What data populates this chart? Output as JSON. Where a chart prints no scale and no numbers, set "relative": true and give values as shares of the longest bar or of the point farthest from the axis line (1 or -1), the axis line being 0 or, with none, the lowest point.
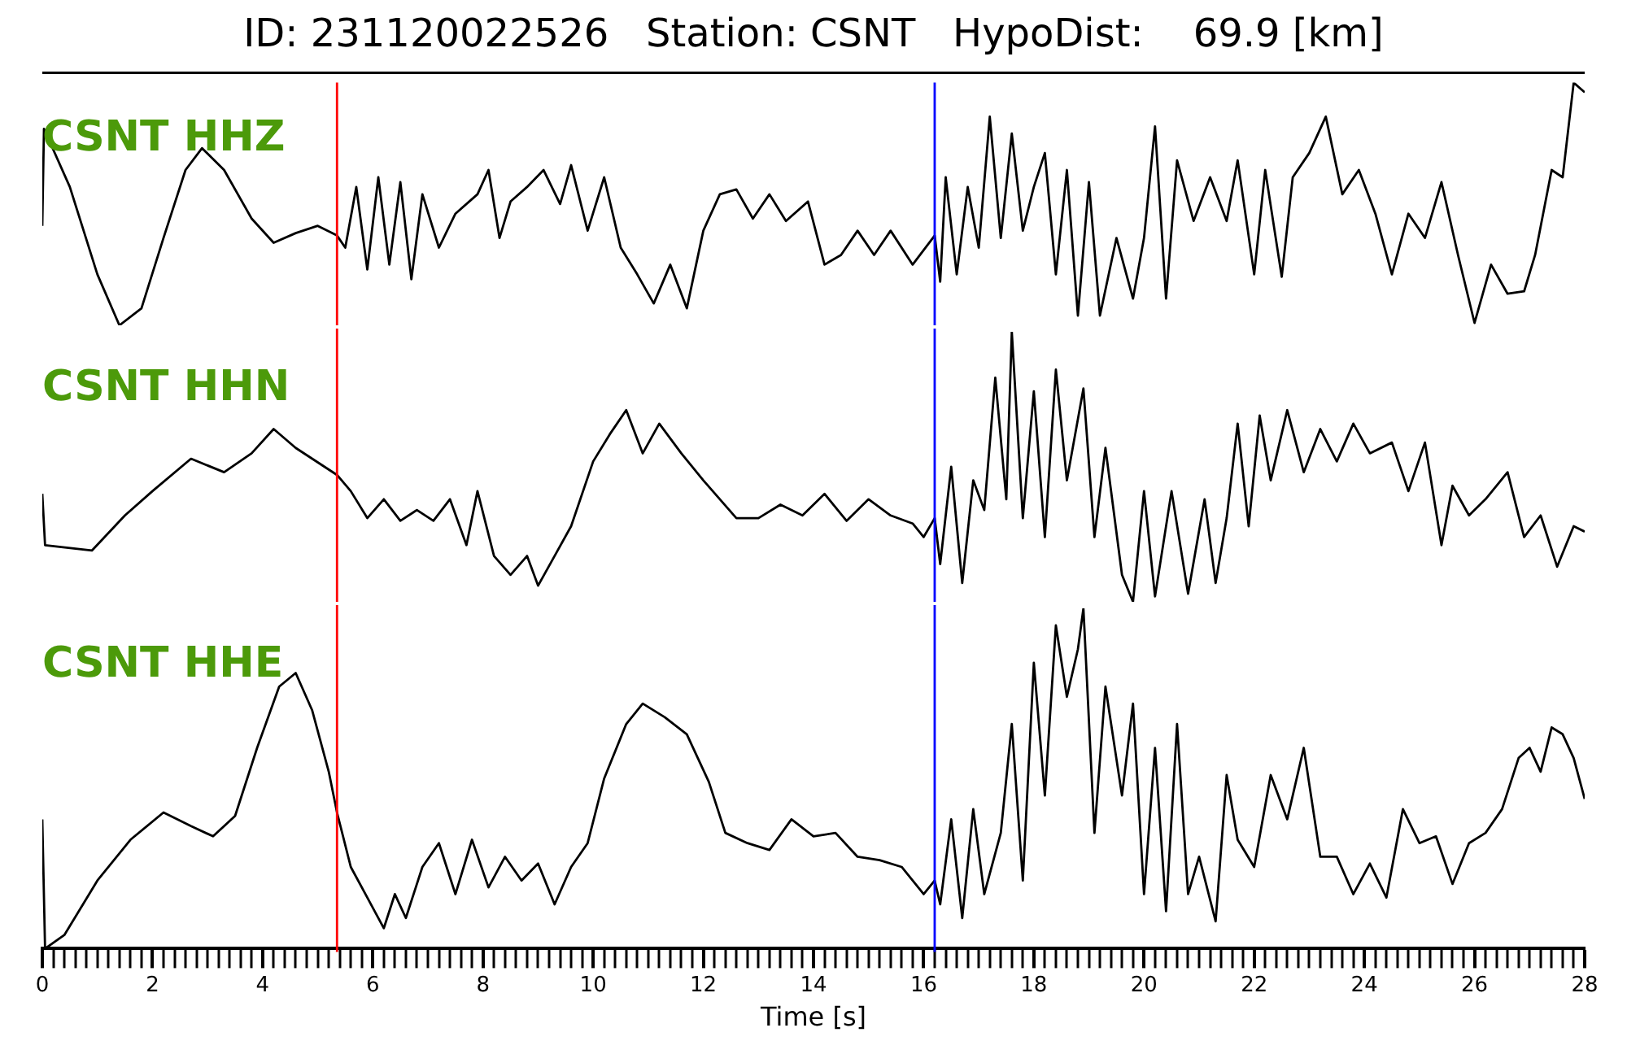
{
  "chart_data": [
    {
      "type": "line",
      "title": "ID: 231120022526   Station: CSNT   HypoDist:    69.9 [km]",
      "annotations": [
        "CSNT HHZ"
      ],
      "relative": true,
      "xlim": [
        0,
        28
      ],
      "tick_labels": false,
      "grid": false,
      "legend": false,
      "ref_lines": [
        {
          "axis": "x",
          "value": 5.35,
          "color": "#ff0000"
        },
        {
          "axis": "x",
          "value": 16.2,
          "color": "#0000ff"
        }
      ],
      "x": [
        0,
        0.03,
        0.5,
        1.0,
        1.4,
        1.8,
        2.2,
        2.6,
        2.9,
        3.3,
        3.8,
        4.2,
        4.6,
        5.0,
        5.35,
        5.5,
        5.7,
        5.9,
        6.1,
        6.3,
        6.5,
        6.7,
        6.9,
        7.2,
        7.5,
        7.9,
        8.1,
        8.3,
        8.5,
        8.8,
        9.1,
        9.4,
        9.6,
        9.9,
        10.2,
        10.5,
        10.8,
        11.1,
        11.4,
        11.7,
        12.0,
        12.3,
        12.6,
        12.9,
        13.2,
        13.5,
        13.9,
        14.2,
        14.5,
        14.8,
        15.1,
        15.4,
        15.8,
        16.2,
        16.3,
        16.4,
        16.6,
        16.8,
        17.0,
        17.2,
        17.4,
        17.6,
        17.8,
        18.0,
        18.2,
        18.4,
        18.6,
        18.8,
        19.0,
        19.2,
        19.5,
        19.8,
        20.0,
        20.2,
        20.4,
        20.6,
        20.9,
        21.2,
        21.5,
        21.7,
        22.0,
        22.2,
        22.5,
        22.7,
        23.0,
        23.3,
        23.6,
        23.9,
        24.2,
        24.5,
        24.8,
        25.1,
        25.4,
        25.7,
        26.0,
        26.3,
        26.6,
        26.9,
        27.1,
        27.4,
        27.6,
        27.8,
        28.0
      ],
      "series": [
        {
          "color": "#000000",
          "values": [
            0.41,
            0.81,
            0.57,
            0.21,
            0,
            0.07,
            0.36,
            0.64,
            0.73,
            0.64,
            0.44,
            0.34,
            0.38,
            0.41,
            0.37,
            0.32,
            0.57,
            0.23,
            0.61,
            0.25,
            0.59,
            0.19,
            0.54,
            0.32,
            0.46,
            0.54,
            0.64,
            0.36,
            0.51,
            0.57,
            0.64,
            0.5,
            0.66,
            0.39,
            0.61,
            0.32,
            0.21,
            0.09,
            0.25,
            0.07,
            0.39,
            0.54,
            0.56,
            0.44,
            0.54,
            0.43,
            0.51,
            0.25,
            0.29,
            0.39,
            0.29,
            0.39,
            0.25,
            0.37,
            0.18,
            0.61,
            0.21,
            0.57,
            0.32,
            0.86,
            0.36,
            0.79,
            0.39,
            0.57,
            0.71,
            0.21,
            0.64,
            0.04,
            0.59,
            0.04,
            0.36,
            0.11,
            0.36,
            0.82,
            0.11,
            0.68,
            0.43,
            0.61,
            0.43,
            0.68,
            0.21,
            0.64,
            0.2,
            0.61,
            0.71,
            0.86,
            0.54,
            0.64,
            0.46,
            0.21,
            0.46,
            0.36,
            0.59,
            0.29,
            0.01,
            0.25,
            0.13,
            0.14,
            0.29,
            0.64,
            0.61,
            1,
            0.96
          ]
        }
      ]
    },
    {
      "type": "line",
      "annotations": [
        "CSNT HHN"
      ],
      "relative": true,
      "xlim": [
        0,
        28
      ],
      "tick_labels": false,
      "grid": false,
      "legend": false,
      "ref_lines": [
        {
          "axis": "x",
          "value": 5.35,
          "color": "#ff0000"
        },
        {
          "axis": "x",
          "value": 16.2,
          "color": "#0000ff"
        }
      ],
      "x": [
        0,
        0.05,
        0.9,
        1.5,
        2.0,
        2.7,
        3.3,
        3.8,
        4.2,
        4.6,
        5.35,
        5.6,
        5.9,
        6.2,
        6.5,
        6.8,
        7.1,
        7.4,
        7.7,
        7.9,
        8.2,
        8.5,
        8.8,
        9.0,
        9.3,
        9.6,
        10.0,
        10.3,
        10.6,
        10.9,
        11.2,
        11.6,
        12.0,
        12.3,
        12.6,
        13.0,
        13.4,
        13.8,
        14.2,
        14.6,
        15.0,
        15.4,
        15.8,
        16.0,
        16.2,
        16.3,
        16.5,
        16.7,
        16.9,
        17.1,
        17.3,
        17.5,
        17.6,
        17.8,
        18.0,
        18.2,
        18.4,
        18.6,
        18.9,
        19.1,
        19.3,
        19.6,
        19.8,
        20.0,
        20.2,
        20.5,
        20.8,
        21.1,
        21.3,
        21.5,
        21.7,
        21.9,
        22.1,
        22.3,
        22.6,
        22.9,
        23.2,
        23.5,
        23.8,
        24.1,
        24.5,
        24.8,
        25.1,
        25.4,
        25.6,
        25.9,
        26.2,
        26.6,
        26.9,
        27.2,
        27.5,
        27.8,
        28.0
      ],
      "series": [
        {
          "color": "#000000",
          "values": [
            0.4,
            0.21,
            0.19,
            0.32,
            0.41,
            0.53,
            0.48,
            0.55,
            0.64,
            0.57,
            0.47,
            0.41,
            0.31,
            0.38,
            0.3,
            0.34,
            0.3,
            0.38,
            0.21,
            0.41,
            0.17,
            0.1,
            0.17,
            0.06,
            0.17,
            0.28,
            0.52,
            0.62,
            0.71,
            0.55,
            0.66,
            0.55,
            0.45,
            0.38,
            0.31,
            0.31,
            0.36,
            0.32,
            0.4,
            0.3,
            0.38,
            0.32,
            0.29,
            0.24,
            0.31,
            0.14,
            0.5,
            0.07,
            0.45,
            0.34,
            0.83,
            0.38,
            1,
            0.31,
            0.78,
            0.24,
            0.86,
            0.45,
            0.79,
            0.24,
            0.57,
            0.1,
            0,
            0.41,
            0.02,
            0.41,
            0.03,
            0.38,
            0.07,
            0.31,
            0.66,
            0.28,
            0.69,
            0.45,
            0.71,
            0.48,
            0.64,
            0.52,
            0.66,
            0.55,
            0.59,
            0.41,
            0.59,
            0.21,
            0.43,
            0.32,
            0.38,
            0.48,
            0.24,
            0.32,
            0.13,
            0.28,
            0.26
          ]
        }
      ]
    },
    {
      "type": "line",
      "annotations": [
        "CSNT HHE"
      ],
      "xlabel": "Time [s]",
      "relative": true,
      "xlim": [
        0,
        28
      ],
      "tick_labels": "x",
      "grid": false,
      "legend": false,
      "ref_lines": [
        {
          "axis": "x",
          "value": 5.35,
          "color": "#ff0000"
        },
        {
          "axis": "x",
          "value": 16.2,
          "color": "#0000ff"
        }
      ],
      "xticks": [
        0,
        {
          "value": 0.2,
          "label": null
        },
        {
          "value": 0.4,
          "label": null
        },
        {
          "value": 0.6,
          "label": null
        },
        {
          "value": 0.8,
          "label": null
        },
        {
          "value": 1,
          "label": null
        },
        {
          "value": 1.2,
          "label": null
        },
        {
          "value": 1.4,
          "label": null
        },
        {
          "value": 1.6,
          "label": null
        },
        {
          "value": 1.8,
          "label": null
        },
        2,
        {
          "value": 2.2,
          "label": null
        },
        {
          "value": 2.4,
          "label": null
        },
        {
          "value": 2.6,
          "label": null
        },
        {
          "value": 2.8,
          "label": null
        },
        {
          "value": 3,
          "label": null
        },
        {
          "value": 3.2,
          "label": null
        },
        {
          "value": 3.4,
          "label": null
        },
        {
          "value": 3.6,
          "label": null
        },
        {
          "value": 3.8,
          "label": null
        },
        4,
        {
          "value": 4.2,
          "label": null
        },
        {
          "value": 4.4,
          "label": null
        },
        {
          "value": 4.6,
          "label": null
        },
        {
          "value": 4.8,
          "label": null
        },
        {
          "value": 5,
          "label": null
        },
        {
          "value": 5.2,
          "label": null
        },
        {
          "value": 5.4,
          "label": null
        },
        {
          "value": 5.6,
          "label": null
        },
        {
          "value": 5.8,
          "label": null
        },
        6,
        {
          "value": 6.2,
          "label": null
        },
        {
          "value": 6.4,
          "label": null
        },
        {
          "value": 6.6,
          "label": null
        },
        {
          "value": 6.8,
          "label": null
        },
        {
          "value": 7,
          "label": null
        },
        {
          "value": 7.2,
          "label": null
        },
        {
          "value": 7.4,
          "label": null
        },
        {
          "value": 7.6,
          "label": null
        },
        {
          "value": 7.8,
          "label": null
        },
        8,
        {
          "value": 8.2,
          "label": null
        },
        {
          "value": 8.4,
          "label": null
        },
        {
          "value": 8.6,
          "label": null
        },
        {
          "value": 8.8,
          "label": null
        },
        {
          "value": 9,
          "label": null
        },
        {
          "value": 9.2,
          "label": null
        },
        {
          "value": 9.4,
          "label": null
        },
        {
          "value": 9.6,
          "label": null
        },
        {
          "value": 9.8,
          "label": null
        },
        10,
        {
          "value": 10.2,
          "label": null
        },
        {
          "value": 10.4,
          "label": null
        },
        {
          "value": 10.6,
          "label": null
        },
        {
          "value": 10.8,
          "label": null
        },
        {
          "value": 11,
          "label": null
        },
        {
          "value": 11.2,
          "label": null
        },
        {
          "value": 11.4,
          "label": null
        },
        {
          "value": 11.6,
          "label": null
        },
        {
          "value": 11.8,
          "label": null
        },
        12,
        {
          "value": 12.2,
          "label": null
        },
        {
          "value": 12.4,
          "label": null
        },
        {
          "value": 12.6,
          "label": null
        },
        {
          "value": 12.8,
          "label": null
        },
        {
          "value": 13,
          "label": null
        },
        {
          "value": 13.2,
          "label": null
        },
        {
          "value": 13.4,
          "label": null
        },
        {
          "value": 13.6,
          "label": null
        },
        {
          "value": 13.8,
          "label": null
        },
        14,
        {
          "value": 14.2,
          "label": null
        },
        {
          "value": 14.4,
          "label": null
        },
        {
          "value": 14.6,
          "label": null
        },
        {
          "value": 14.8,
          "label": null
        },
        {
          "value": 15,
          "label": null
        },
        {
          "value": 15.2,
          "label": null
        },
        {
          "value": 15.4,
          "label": null
        },
        {
          "value": 15.6,
          "label": null
        },
        {
          "value": 15.8,
          "label": null
        },
        16,
        {
          "value": 16.2,
          "label": null
        },
        {
          "value": 16.4,
          "label": null
        },
        {
          "value": 16.6,
          "label": null
        },
        {
          "value": 16.8,
          "label": null
        },
        {
          "value": 17,
          "label": null
        },
        {
          "value": 17.2,
          "label": null
        },
        {
          "value": 17.4,
          "label": null
        },
        {
          "value": 17.6,
          "label": null
        },
        {
          "value": 17.8,
          "label": null
        },
        18,
        {
          "value": 18.2,
          "label": null
        },
        {
          "value": 18.4,
          "label": null
        },
        {
          "value": 18.6,
          "label": null
        },
        {
          "value": 18.8,
          "label": null
        },
        {
          "value": 19,
          "label": null
        },
        {
          "value": 19.2,
          "label": null
        },
        {
          "value": 19.4,
          "label": null
        },
        {
          "value": 19.6,
          "label": null
        },
        {
          "value": 19.8,
          "label": null
        },
        20,
        {
          "value": 20.2,
          "label": null
        },
        {
          "value": 20.4,
          "label": null
        },
        {
          "value": 20.6,
          "label": null
        },
        {
          "value": 20.8,
          "label": null
        },
        {
          "value": 21,
          "label": null
        },
        {
          "value": 21.2,
          "label": null
        },
        {
          "value": 21.4,
          "label": null
        },
        {
          "value": 21.6,
          "label": null
        },
        {
          "value": 21.8,
          "label": null
        },
        22,
        {
          "value": 22.2,
          "label": null
        },
        {
          "value": 22.4,
          "label": null
        },
        {
          "value": 22.6,
          "label": null
        },
        {
          "value": 22.8,
          "label": null
        },
        {
          "value": 23,
          "label": null
        },
        {
          "value": 23.2,
          "label": null
        },
        {
          "value": 23.4,
          "label": null
        },
        {
          "value": 23.6,
          "label": null
        },
        {
          "value": 23.8,
          "label": null
        },
        24,
        {
          "value": 24.2,
          "label": null
        },
        {
          "value": 24.4,
          "label": null
        },
        {
          "value": 24.6,
          "label": null
        },
        {
          "value": 24.8,
          "label": null
        },
        {
          "value": 25,
          "label": null
        },
        {
          "value": 25.2,
          "label": null
        },
        {
          "value": 25.4,
          "label": null
        },
        {
          "value": 25.6,
          "label": null
        },
        {
          "value": 25.8,
          "label": null
        },
        26,
        {
          "value": 26.2,
          "label": null
        },
        {
          "value": 26.4,
          "label": null
        },
        {
          "value": 26.6,
          "label": null
        },
        {
          "value": 26.8,
          "label": null
        },
        {
          "value": 27,
          "label": null
        },
        {
          "value": 27.2,
          "label": null
        },
        {
          "value": 27.4,
          "label": null
        },
        {
          "value": 27.6,
          "label": null
        },
        {
          "value": 27.8,
          "label": null
        },
        28
      ],
      "x": [
        0,
        0.05,
        0.4,
        1.0,
        1.6,
        2.2,
        2.7,
        3.1,
        3.5,
        3.9,
        4.3,
        4.6,
        4.9,
        5.2,
        5.35,
        5.6,
        5.9,
        6.2,
        6.4,
        6.6,
        6.9,
        7.2,
        7.5,
        7.8,
        8.1,
        8.4,
        8.7,
        9.0,
        9.3,
        9.6,
        9.9,
        10.2,
        10.6,
        10.9,
        11.3,
        11.7,
        12.1,
        12.4,
        12.8,
        13.2,
        13.6,
        14.0,
        14.4,
        14.8,
        15.2,
        15.6,
        16.0,
        16.2,
        16.3,
        16.5,
        16.7,
        16.9,
        17.1,
        17.4,
        17.6,
        17.8,
        18.0,
        18.2,
        18.4,
        18.6,
        18.8,
        18.9,
        19.1,
        19.3,
        19.6,
        19.8,
        20.0,
        20.2,
        20.4,
        20.6,
        20.8,
        21.0,
        21.3,
        21.5,
        21.7,
        22.0,
        22.3,
        22.6,
        22.9,
        23.2,
        23.5,
        23.8,
        24.1,
        24.4,
        24.7,
        25.0,
        25.3,
        25.6,
        25.9,
        26.2,
        26.5,
        26.8,
        27.0,
        27.2,
        27.4,
        27.6,
        27.8,
        28.0
      ],
      "series": [
        {
          "color": "#000000",
          "values": [
            0.38,
            0,
            0.04,
            0.2,
            0.32,
            0.4,
            0.36,
            0.33,
            0.39,
            0.59,
            0.77,
            0.81,
            0.7,
            0.52,
            0.4,
            0.24,
            0.15,
            0.06,
            0.16,
            0.09,
            0.24,
            0.31,
            0.16,
            0.32,
            0.18,
            0.27,
            0.2,
            0.25,
            0.13,
            0.24,
            0.31,
            0.5,
            0.66,
            0.72,
            0.68,
            0.63,
            0.49,
            0.34,
            0.31,
            0.29,
            0.38,
            0.33,
            0.34,
            0.27,
            0.26,
            0.24,
            0.16,
            0.2,
            0.13,
            0.38,
            0.09,
            0.41,
            0.16,
            0.34,
            0.66,
            0.2,
            0.84,
            0.45,
            0.95,
            0.74,
            0.88,
            1,
            0.34,
            0.77,
            0.45,
            0.72,
            0.16,
            0.59,
            0.11,
            0.66,
            0.16,
            0.27,
            0.08,
            0.51,
            0.32,
            0.24,
            0.51,
            0.38,
            0.59,
            0.27,
            0.27,
            0.16,
            0.25,
            0.15,
            0.41,
            0.31,
            0.33,
            0.19,
            0.31,
            0.34,
            0.41,
            0.56,
            0.59,
            0.52,
            0.65,
            0.63,
            0.56,
            0.44
          ]
        }
      ]
    }
  ]
}
